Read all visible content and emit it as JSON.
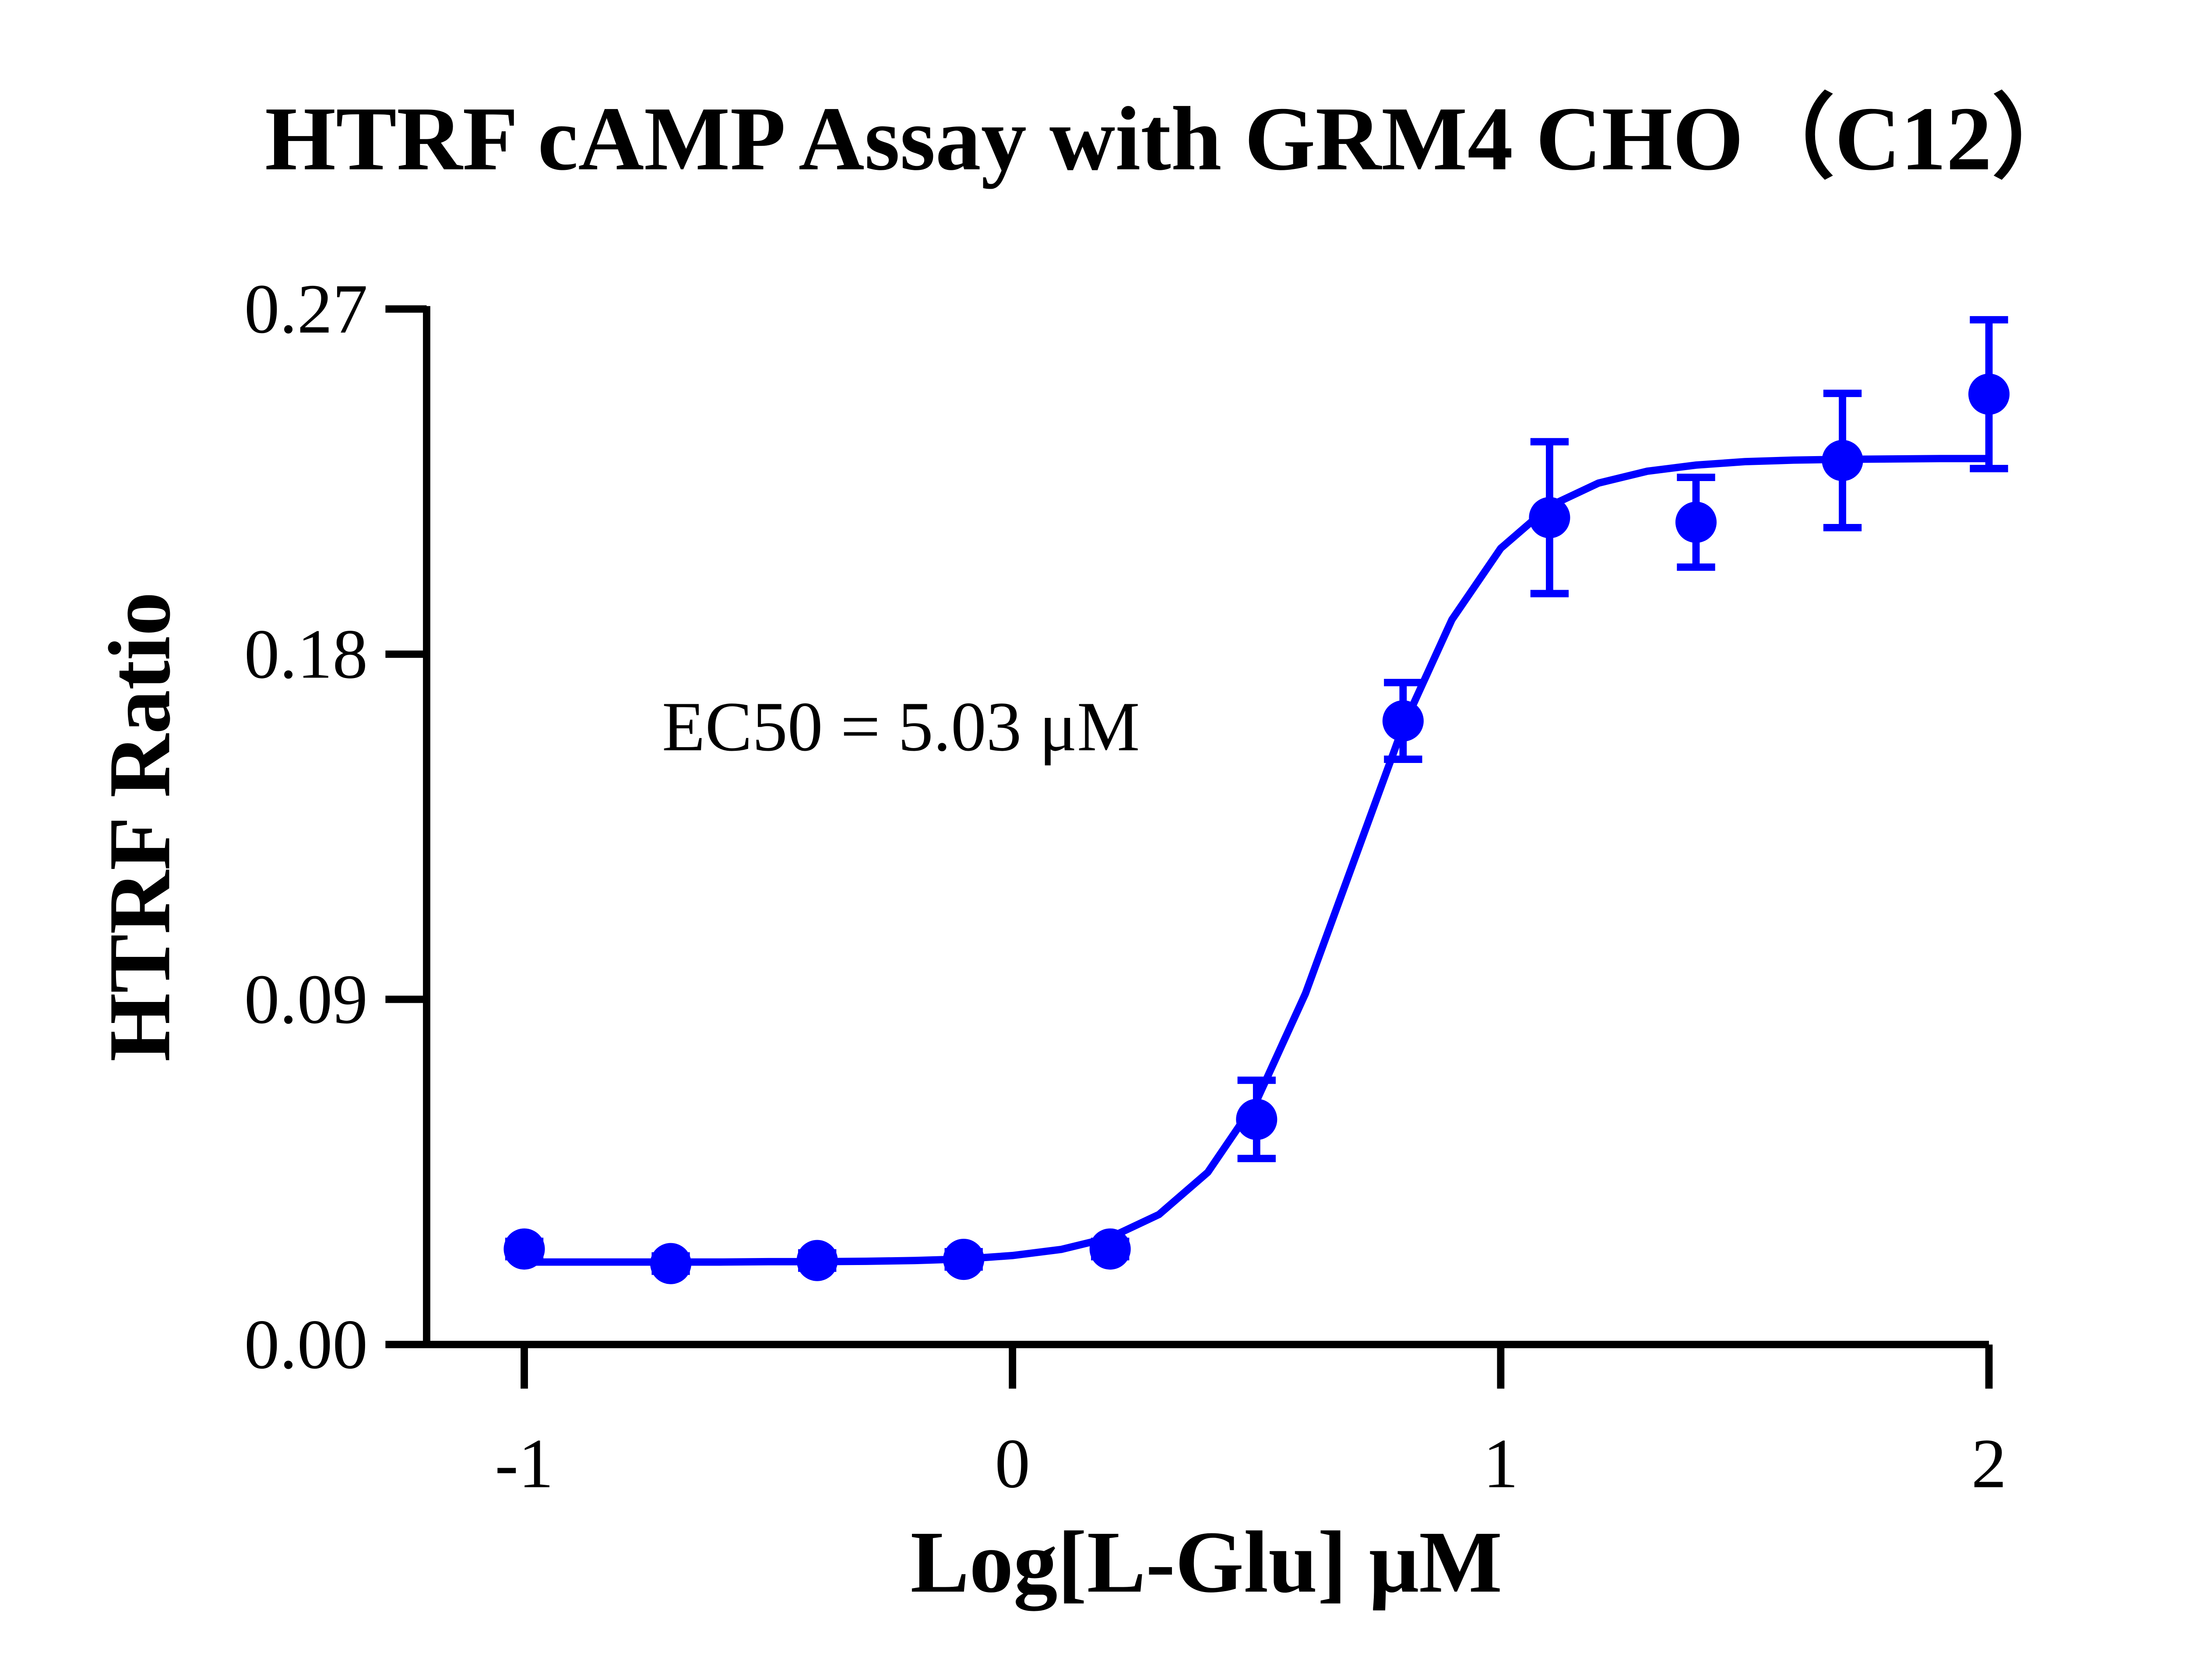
{
  "chart_data": {
    "type": "scatter",
    "title": "HTRF cAMP Assay with GRM4 CHO（C12）",
    "x_label": "Log[L-Glu] μM",
    "y_label": "HTRF Ratio",
    "annotation": "EC50 = 5.03 μM",
    "xlim": [
      -1.2,
      2
    ],
    "xticks": [
      -1,
      0,
      1,
      2
    ],
    "ylim": [
      0,
      0.27
    ],
    "yticks": [
      {
        "value": 0,
        "label": "0.00"
      },
      0.09,
      0.18,
      0.27
    ],
    "series": [
      {
        "color": "#0000ff",
        "x": [
          -1,
          -0.7,
          -0.4,
          -0.1,
          0.2,
          0.5,
          0.8,
          1.1,
          1.4,
          1.7,
          2.0
        ],
        "values": [
          0.0249,
          0.0211,
          0.0219,
          0.0222,
          0.0249,
          0.0587,
          0.1626,
          0.2156,
          0.2144,
          0.2305,
          0.2478
        ],
        "errors": [
          0.002,
          0.002,
          0.002,
          0.002,
          0.002,
          0.0102,
          0.01,
          0.0198,
          0.0117,
          0.0175,
          0.0194
        ]
      }
    ],
    "curve": {
      "color": "#0000ff",
      "x": [
        -1.0,
        -0.9,
        -0.8,
        -0.7,
        -0.6,
        -0.5,
        -0.4,
        -0.3,
        -0.2,
        -0.1,
        0.0,
        0.1,
        0.2,
        0.3,
        0.4,
        0.5,
        0.6,
        0.7,
        0.8,
        0.9,
        1.0,
        1.1,
        1.2,
        1.3,
        1.4,
        1.5,
        1.6,
        1.7,
        1.8,
        1.9,
        2.0
      ],
      "values": [
        0.0215,
        0.0215,
        0.0215,
        0.0215,
        0.0215,
        0.0216,
        0.0216,
        0.0217,
        0.0219,
        0.0223,
        0.0232,
        0.0248,
        0.0279,
        0.0339,
        0.0449,
        0.0636,
        0.0915,
        0.1263,
        0.1611,
        0.189,
        0.2076,
        0.2186,
        0.2246,
        0.2277,
        0.2293,
        0.2302,
        0.2306,
        0.2308,
        0.2309,
        0.231,
        0.231
      ]
    }
  }
}
